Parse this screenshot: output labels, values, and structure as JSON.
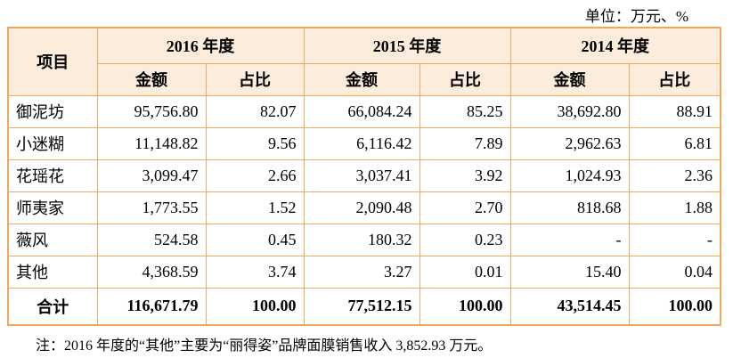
{
  "unit": "单位：万元、%",
  "table": {
    "item_header": "项目",
    "years": [
      "2016 年度",
      "2015 年度",
      "2014 年度"
    ],
    "subheaders": [
      "金额",
      "占比",
      "金额",
      "占比",
      "金额",
      "占比"
    ],
    "rows": [
      [
        "御泥坊",
        "95,756.80",
        "82.07",
        "66,084.24",
        "85.25",
        "38,692.80",
        "88.91"
      ],
      [
        "小迷糊",
        "11,148.82",
        "9.56",
        "6,116.42",
        "7.89",
        "2,962.63",
        "6.81"
      ],
      [
        "花瑶花",
        "3,099.47",
        "2.66",
        "3,037.41",
        "3.92",
        "1,024.93",
        "2.36"
      ],
      [
        "师夷家",
        "1,773.55",
        "1.52",
        "2,090.48",
        "2.70",
        "818.68",
        "1.88"
      ],
      [
        "薇风",
        "524.58",
        "0.45",
        "180.32",
        "0.23",
        "-",
        "-"
      ],
      [
        "其他",
        "4,368.59",
        "3.74",
        "3.27",
        "0.01",
        "15.40",
        "0.04"
      ],
      [
        "合计",
        "116,671.79",
        "100.00",
        "77,512.15",
        "100.00",
        "43,514.45",
        "100.00"
      ]
    ]
  },
  "footnote": "注：2016 年度的“其他”主要为“丽得姿”品牌面膜销售收入 3,852.93 万元。"
}
